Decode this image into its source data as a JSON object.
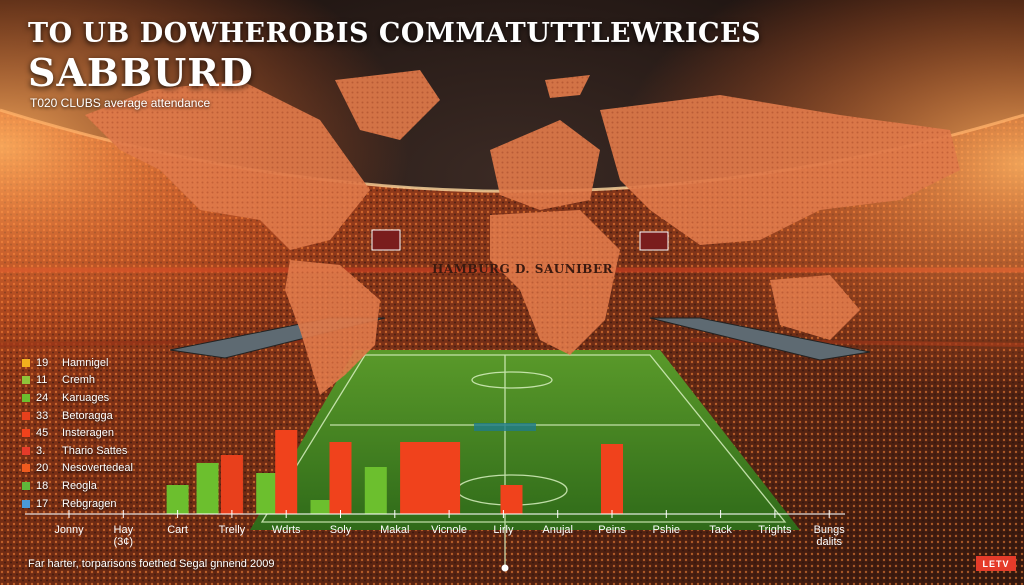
{
  "header": {
    "title_line1": "TO UB DOWHEROBIS COMMATUTTLEWRICES",
    "title_line2": "SABBURD",
    "subtitle": "T020 CLUBS average attendance"
  },
  "stadium_banner": "HAMBURG D. SAUNIBER",
  "legend": {
    "items": [
      {
        "num": "19",
        "label": "Hamnigel",
        "color": "#f2b01e"
      },
      {
        "num": "11",
        "label": "Cremh",
        "color": "#8fc43a"
      },
      {
        "num": "24",
        "label": "Karuages",
        "color": "#6cbf2e"
      },
      {
        "num": "33",
        "label": "Betoragga",
        "color": "#e8401c"
      },
      {
        "num": "45",
        "label": "Insteragen",
        "color": "#f0421c"
      },
      {
        "num": "3.",
        "label": "Thario Sattes",
        "color": "#e53b2a"
      },
      {
        "num": "20",
        "label": "Nesovertedeal",
        "color": "#ef5a1e"
      },
      {
        "num": "18",
        "label": "Reogla",
        "color": "#5fb83a"
      },
      {
        "num": "17",
        "label": "Rebgragen",
        "color": "#4a9ad8"
      }
    ]
  },
  "footnote": "Far harter, torparisons foethed Segal gnnend 2009",
  "logo_text": "LETV",
  "colors": {
    "green": "#6cbf2e",
    "red": "#e8401c"
  },
  "chart_data": {
    "type": "bar",
    "categories": [
      "Jonny",
      "Hay\n(3¢)",
      "Cart",
      "Trelly",
      "Wdrts",
      "Soly",
      "Makal",
      "Vicnole",
      "Lirly",
      "Anujal",
      "Peins",
      "Pshie",
      "Tack",
      "Trights",
      "Bungs\ndalits"
    ],
    "values": [
      0,
      0,
      0,
      0,
      0,
      0,
      0,
      0,
      0,
      0,
      0,
      0,
      0,
      0,
      0
    ],
    "bars": [
      {
        "slot": 2,
        "value": 29,
        "color": "#6cbf2e"
      },
      {
        "slot": 2.55,
        "value": 51,
        "color": "#6cbf2e"
      },
      {
        "slot": 3,
        "value": 59,
        "color": "#e8401c"
      },
      {
        "slot": 3.65,
        "value": 41,
        "color": "#6cbf2e"
      },
      {
        "slot": 4,
        "value": 84,
        "color": "#f0421c"
      },
      {
        "slot": 4.65,
        "value": 14,
        "color": "#6cbf2e"
      },
      {
        "slot": 5,
        "value": 72,
        "color": "#f0421c"
      },
      {
        "slot": 5.65,
        "value": 47,
        "color": "#6cbf2e"
      },
      {
        "slot": 6.3,
        "value": 72,
        "color": "#f0421c"
      },
      {
        "slot": 6.65,
        "value": 72,
        "color": "#f0421c"
      },
      {
        "slot": 7,
        "value": 72,
        "color": "#f0421c"
      },
      {
        "slot": 8.15,
        "value": 29,
        "color": "#f0421c"
      },
      {
        "slot": 10,
        "value": 70,
        "color": "#f0421c"
      }
    ],
    "ylim": [
      0,
      100
    ]
  }
}
